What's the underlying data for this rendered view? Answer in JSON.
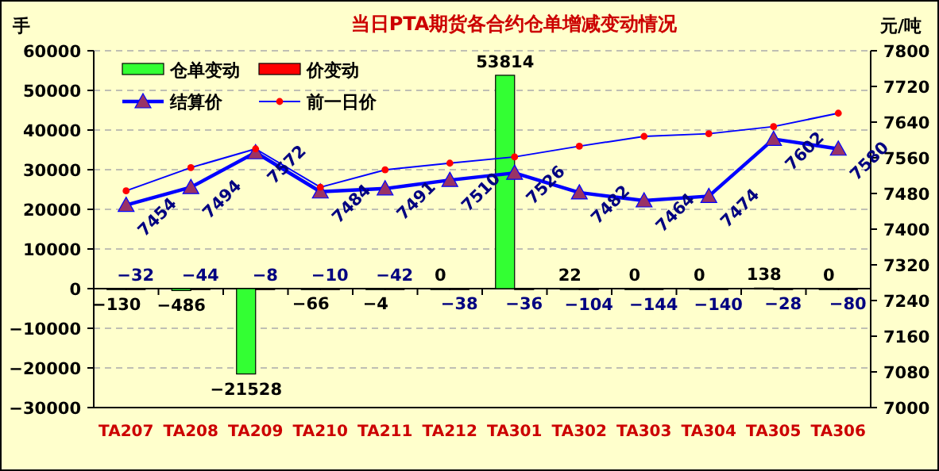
{
  "chart_data": {
    "type": "bar",
    "title": "当日PTA期货各合约仓单增减变动情况",
    "ylabel": "手",
    "y2label": "元/吨",
    "categories": [
      "TA207",
      "TA208",
      "TA209",
      "TA210",
      "TA211",
      "TA212",
      "TA301",
      "TA302",
      "TA303",
      "TA304",
      "TA305",
      "TA306"
    ],
    "series": [
      {
        "name": "仓单变动",
        "color": "#33ff33",
        "values": [
          -130,
          -486,
          -21528,
          -66,
          -4,
          0,
          53814,
          22,
          0,
          0,
          138,
          0
        ],
        "data_labels": true
      },
      {
        "name": "价变动",
        "color": "#ff0000",
        "values": [
          -32,
          -44,
          -8,
          -10,
          -42,
          -38,
          -36,
          -104,
          -144,
          -140,
          -28,
          -80
        ],
        "data_labels": true
      },
      {
        "name": "结算价",
        "type": "line",
        "axis": "y2",
        "color": "#0000ff",
        "marker": "triangle",
        "values": [
          7454,
          7494,
          7572,
          7484,
          7491,
          7510,
          7526,
          7482,
          7464,
          7474,
          7602,
          7580
        ],
        "data_labels": true
      },
      {
        "name": "前一日价",
        "type": "line",
        "axis": "y2",
        "color": "#0000ff",
        "marker": "circle",
        "values": [
          7486,
          7538,
          7580,
          7494,
          7533,
          7548,
          7562,
          7586,
          7608,
          7614,
          7630,
          7660
        ]
      }
    ],
    "ylim": [
      -30000,
      60000
    ],
    "yticks": [
      -30000,
      -20000,
      -10000,
      0,
      10000,
      20000,
      30000,
      40000,
      50000,
      60000
    ],
    "y2lim": [
      7000,
      7800
    ],
    "y2ticks": [
      7000,
      7080,
      7160,
      7240,
      7320,
      7400,
      7480,
      7560,
      7640,
      7720,
      7800
    ],
    "grid": "y",
    "legend": "top left"
  }
}
